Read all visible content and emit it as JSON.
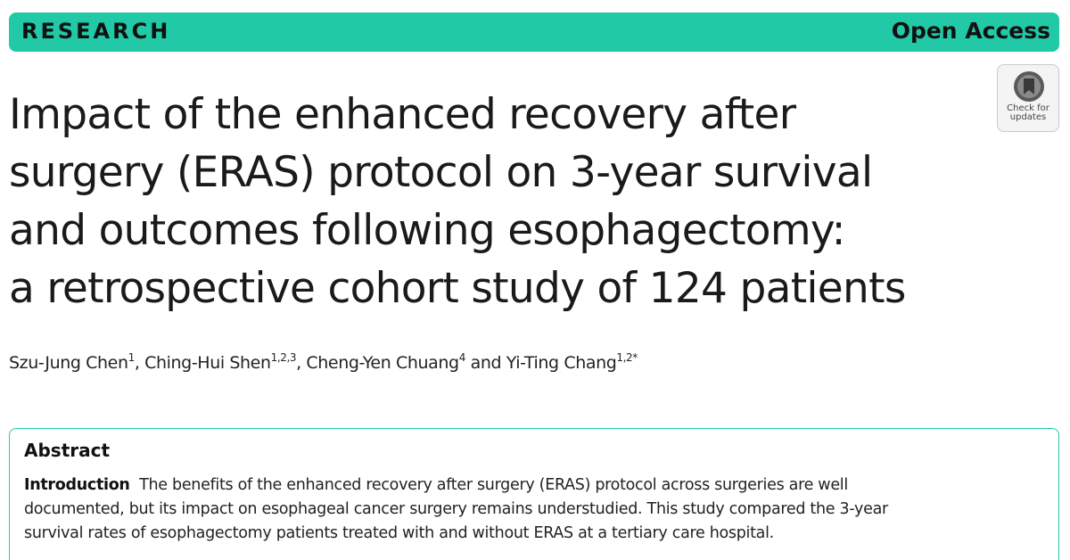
{
  "banner": {
    "section_label": "RESEARCH",
    "access_label": "Open Access"
  },
  "title_lines": [
    "Impact of the enhanced recovery after",
    "surgery (ERAS) protocol on 3-year survival",
    "and outcomes following esophagectomy:",
    "a retrospective cohort study of 124 patients"
  ],
  "check_updates": {
    "line1": "Check for",
    "line2": "updates",
    "icon": "bookmark-icon"
  },
  "authors": [
    {
      "name": "Szu-Jung Chen",
      "affil": "1",
      "sep": ", "
    },
    {
      "name": "Ching-Hui Shen",
      "affil": "1,2,3",
      "sep": ", "
    },
    {
      "name": "Cheng-Yen Chuang",
      "affil": "4",
      "sep": " and "
    },
    {
      "name": "Yi-Ting Chang",
      "affil": "1,2*",
      "sep": ""
    }
  ],
  "abstract": {
    "heading": "Abstract",
    "intro_label": "Introduction",
    "intro_lines": [
      "The benefits of the enhanced recovery after surgery (ERAS) protocol across surgeries are well",
      "documented, but its impact on esophageal cancer surgery remains understudied. This study compared the 3-year",
      "survival rates of esophagectomy patients treated with and without ERAS at a tertiary care hospital."
    ]
  },
  "colors": {
    "accent": "#22c9a7"
  }
}
